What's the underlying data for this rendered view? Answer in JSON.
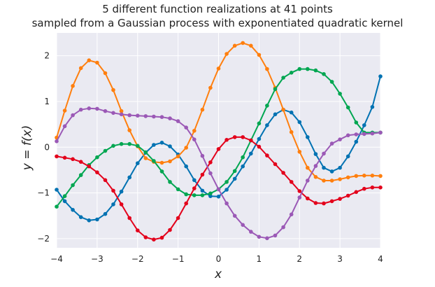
{
  "chart_data": {
    "type": "line",
    "title": "5 different function realizations at 41 points",
    "subtitle": "sampled from a Gaussian process with exponentiated quadratic kernel",
    "xlabel": "x",
    "ylabel": "y = f(x)",
    "xlim": [
      -4,
      4
    ],
    "ylim": [
      -2.2,
      2.5
    ],
    "xticks": [
      "−4",
      "−3",
      "−2",
      "−1",
      "0",
      "1",
      "2",
      "3",
      "4"
    ],
    "yticks": [
      "−2",
      "−1",
      "0",
      "1",
      "2"
    ],
    "grid": true,
    "x": [
      -4,
      -3.8,
      -3.6,
      -3.4,
      -3.2,
      -3,
      -2.8,
      -2.6,
      -2.4,
      -2.2,
      -2,
      -1.8,
      -1.6,
      -1.4,
      -1.2,
      -1,
      -0.8,
      -0.6,
      -0.4,
      -0.2,
      0,
      0.2,
      0.4,
      0.6,
      0.8,
      1,
      1.2,
      1.4,
      1.6,
      1.8,
      2,
      2.2,
      2.4,
      2.6,
      2.8,
      3,
      3.2,
      3.4,
      3.6,
      3.8,
      4
    ],
    "series": [
      {
        "color": "#0072b2",
        "values": [
          -0.93,
          -1.18,
          -1.37,
          -1.53,
          -1.6,
          -1.58,
          -1.46,
          -1.25,
          -0.97,
          -0.66,
          -0.35,
          -0.12,
          0.05,
          0.1,
          0.02,
          -0.16,
          -0.42,
          -0.72,
          -0.95,
          -1.07,
          -1.08,
          -0.93,
          -0.69,
          -0.42,
          -0.14,
          0.18,
          0.48,
          0.72,
          0.82,
          0.76,
          0.55,
          0.22,
          -0.15,
          -0.45,
          -0.53,
          -0.45,
          -0.2,
          0.12,
          0.48,
          0.88,
          1.55
        ]
      },
      {
        "color": "#ff7f0e",
        "values": [
          0.21,
          0.8,
          1.34,
          1.73,
          1.9,
          1.85,
          1.62,
          1.25,
          0.79,
          0.37,
          0.02,
          -0.24,
          -0.32,
          -0.34,
          -0.31,
          -0.2,
          -0.01,
          0.36,
          0.82,
          1.3,
          1.72,
          2.04,
          2.22,
          2.28,
          2.22,
          2.02,
          1.71,
          1.3,
          0.82,
          0.33,
          -0.1,
          -0.45,
          -0.65,
          -0.73,
          -0.73,
          -0.7,
          -0.66,
          -0.63,
          -0.62,
          -0.62,
          -0.63
        ]
      },
      {
        "color": "#00a651",
        "values": [
          -1.3,
          -1.07,
          -0.83,
          -0.61,
          -0.39,
          -0.22,
          -0.08,
          0.03,
          0.07,
          0.07,
          0.03,
          -0.11,
          -0.3,
          -0.53,
          -0.76,
          -0.92,
          -1.03,
          -1.05,
          -1.05,
          -1.01,
          -0.92,
          -0.76,
          -0.52,
          -0.22,
          0.15,
          0.52,
          0.91,
          1.27,
          1.52,
          1.63,
          1.71,
          1.71,
          1.68,
          1.6,
          1.43,
          1.17,
          0.87,
          0.54,
          0.32,
          0.32,
          0.32
        ]
      },
      {
        "color": "#e3001b",
        "values": [
          -0.2,
          -0.23,
          -0.26,
          -0.32,
          -0.42,
          -0.55,
          -0.72,
          -0.95,
          -1.25,
          -1.55,
          -1.82,
          -1.97,
          -2.02,
          -1.98,
          -1.81,
          -1.55,
          -1.23,
          -0.9,
          -0.6,
          -0.33,
          -0.04,
          0.16,
          0.22,
          0.22,
          0.15,
          0.01,
          -0.18,
          -0.37,
          -0.56,
          -0.76,
          -0.96,
          -1.12,
          -1.22,
          -1.23,
          -1.18,
          -1.13,
          -1.06,
          -0.98,
          -0.91,
          -0.88,
          -0.88
        ]
      },
      {
        "color": "#9b59b6",
        "values": [
          0.13,
          0.46,
          0.7,
          0.82,
          0.85,
          0.84,
          0.79,
          0.75,
          0.72,
          0.7,
          0.69,
          0.68,
          0.67,
          0.66,
          0.63,
          0.57,
          0.43,
          0.17,
          -0.19,
          -0.57,
          -0.92,
          -1.23,
          -1.5,
          -1.7,
          -1.85,
          -1.96,
          -1.99,
          -1.93,
          -1.75,
          -1.47,
          -1.1,
          -0.73,
          -0.41,
          -0.14,
          0.08,
          0.17,
          0.26,
          0.28,
          0.29,
          0.3,
          0.32
        ]
      }
    ]
  }
}
